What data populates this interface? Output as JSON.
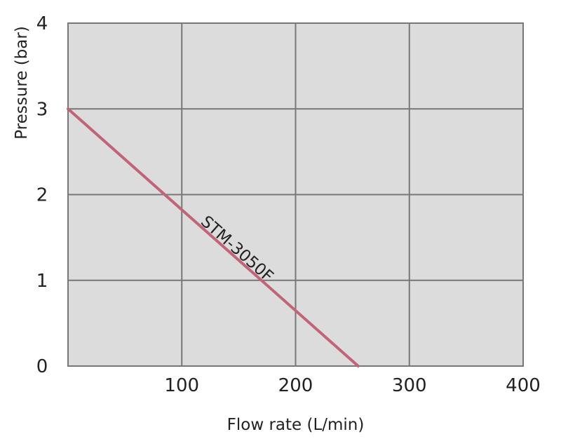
{
  "chart_data": {
    "type": "line",
    "xlabel": "Flow rate (L/min)",
    "ylabel": "Pressure (bar)",
    "xlim": [
      0,
      400
    ],
    "ylim": [
      0,
      4
    ],
    "x_ticks": [
      "100",
      "200",
      "300",
      "400"
    ],
    "y_ticks": [
      "0",
      "1",
      "2",
      "3",
      "4"
    ],
    "grid": true,
    "series": [
      {
        "name": "STM-3050F",
        "x": [
          0,
          255
        ],
        "y": [
          3,
          0
        ]
      }
    ],
    "colors": {
      "plot_background": "#dcdcdc",
      "grid": "#777777",
      "series": "#c06478"
    }
  }
}
